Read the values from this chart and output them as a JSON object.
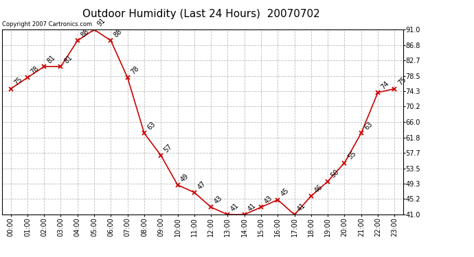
{
  "title": "Outdoor Humidity (Last 24 Hours)  20070702",
  "copyright": "Copyright 2007 Cartronics.com",
  "hours": [
    "00:00",
    "01:00",
    "02:00",
    "03:00",
    "04:00",
    "05:00",
    "06:00",
    "07:00",
    "08:00",
    "09:00",
    "10:00",
    "11:00",
    "12:00",
    "13:00",
    "14:00",
    "15:00",
    "16:00",
    "17:00",
    "18:00",
    "19:00",
    "20:00",
    "21:00",
    "22:00",
    "23:00"
  ],
  "values": [
    75,
    78,
    81,
    81,
    88,
    91,
    88,
    78,
    63,
    57,
    49,
    47,
    43,
    41,
    41,
    43,
    45,
    41,
    46,
    50,
    55,
    63,
    74,
    75
  ],
  "ylim": [
    41.0,
    91.0
  ],
  "yticks": [
    41.0,
    45.2,
    49.3,
    53.5,
    57.7,
    61.8,
    66.0,
    70.2,
    74.3,
    78.5,
    82.7,
    86.8,
    91.0
  ],
  "ytick_labels": [
    "41.0",
    "45.2",
    "49.3",
    "53.5",
    "57.7",
    "61.8",
    "66.0",
    "70.2",
    "74.3",
    "78.5",
    "82.7",
    "86.8",
    "91.0"
  ],
  "line_color": "#cc0000",
  "marker_color": "#cc0000",
  "bg_color": "#ffffff",
  "grid_color": "#bbbbbb",
  "title_fontsize": 11,
  "label_fontsize": 7,
  "annotation_fontsize": 7,
  "copyright_fontsize": 6
}
